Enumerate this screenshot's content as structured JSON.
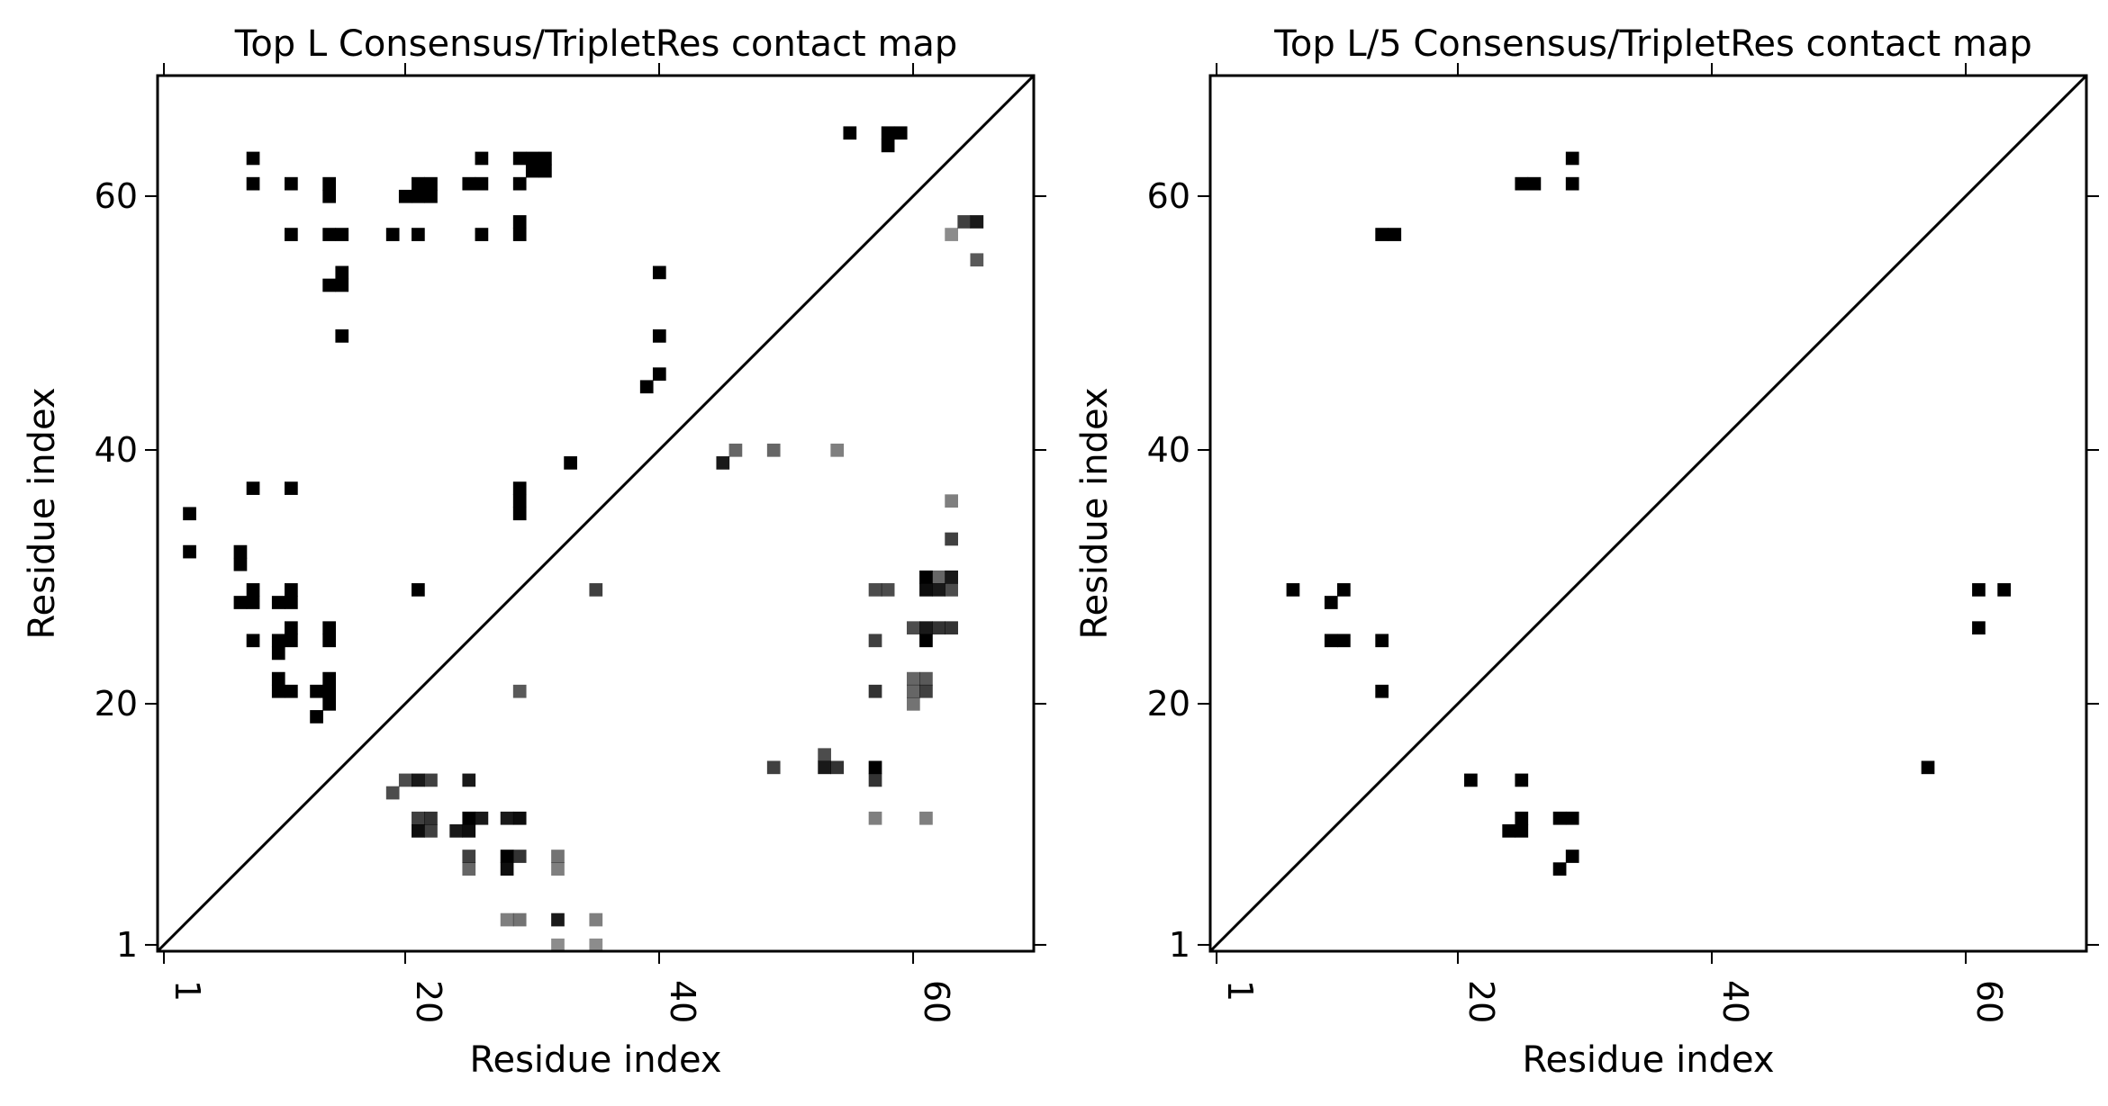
{
  "charts": [
    {
      "title": "Top L Consensus/TripletRes contact map",
      "xlabel": "Residue index",
      "ylabel": "Residue index",
      "xticks": [
        "1",
        "20",
        "40",
        "60"
      ],
      "yticks": [
        "1",
        "20",
        "40",
        "60"
      ]
    },
    {
      "title": "Top L/5 Consensus/TripletRes contact map",
      "xlabel": "Residue index",
      "ylabel": "Residue index",
      "xticks": [
        "1",
        "20",
        "40",
        "60"
      ],
      "yticks": [
        "1",
        "20",
        "40",
        "60"
      ]
    }
  ],
  "chart_data": [
    {
      "type": "heatmap",
      "title": "Top L Consensus/TripletRes contact map",
      "xlabel": "Residue index",
      "ylabel": "Residue index",
      "xlim": [
        0.5,
        69.5
      ],
      "ylim": [
        0.5,
        69.5
      ],
      "tick_values": [
        1,
        20,
        40,
        60
      ],
      "grid": false,
      "diagonal_line": true,
      "cell_color": "#000000",
      "upper_contacts": [
        [
          8,
          63
        ],
        [
          8,
          61
        ],
        [
          11,
          61
        ],
        [
          11,
          57
        ],
        [
          14,
          61
        ],
        [
          14,
          60
        ],
        [
          14,
          57
        ],
        [
          15,
          57
        ],
        [
          14,
          53
        ],
        [
          15,
          53
        ],
        [
          15,
          54
        ],
        [
          15,
          49
        ],
        [
          19,
          57
        ],
        [
          20,
          60
        ],
        [
          21,
          60
        ],
        [
          21,
          57
        ],
        [
          21,
          61
        ],
        [
          22,
          61
        ],
        [
          22,
          60
        ],
        [
          25,
          61
        ],
        [
          26,
          61
        ],
        [
          26,
          63
        ],
        [
          26,
          57
        ],
        [
          29,
          63
        ],
        [
          29,
          61
        ],
        [
          29,
          58
        ],
        [
          29,
          57
        ],
        [
          30,
          63
        ],
        [
          30,
          62
        ],
        [
          31,
          62
        ],
        [
          31,
          63
        ],
        [
          55,
          65
        ],
        [
          58,
          65
        ],
        [
          58,
          64
        ],
        [
          59,
          65
        ],
        [
          39,
          45
        ],
        [
          40,
          46
        ],
        [
          40,
          49
        ],
        [
          40,
          54
        ],
        [
          33,
          39
        ],
        [
          29,
          37
        ],
        [
          29,
          36
        ],
        [
          29,
          35
        ],
        [
          21,
          29
        ],
        [
          3,
          35
        ],
        [
          3,
          32
        ],
        [
          7,
          32
        ],
        [
          7,
          31
        ],
        [
          7,
          28
        ],
        [
          8,
          28
        ],
        [
          8,
          29
        ],
        [
          8,
          37
        ],
        [
          8,
          25
        ],
        [
          10,
          28
        ],
        [
          10,
          24
        ],
        [
          10,
          25
        ],
        [
          10,
          22
        ],
        [
          10,
          21
        ],
        [
          11,
          28
        ],
        [
          11,
          29
        ],
        [
          11,
          37
        ],
        [
          11,
          26
        ],
        [
          11,
          25
        ],
        [
          11,
          21
        ],
        [
          13,
          21
        ],
        [
          13,
          19
        ],
        [
          14,
          21
        ],
        [
          14,
          22
        ],
        [
          14,
          20
        ],
        [
          14,
          25
        ],
        [
          14,
          26
        ]
      ],
      "lower_contacts": [
        [
          45,
          39,
          0.9
        ],
        [
          46,
          40,
          0.6
        ],
        [
          49,
          40,
          0.6
        ],
        [
          54,
          40,
          0.5
        ],
        [
          35,
          29,
          0.75
        ],
        [
          29,
          21,
          0.65
        ],
        [
          49,
          15,
          0.75
        ],
        [
          53,
          16,
          0.7
        ],
        [
          53,
          15,
          0.9
        ],
        [
          54,
          15,
          0.8
        ],
        [
          57,
          15,
          1.0
        ],
        [
          57,
          14,
          0.8
        ],
        [
          57,
          11,
          0.5
        ],
        [
          61,
          11,
          0.5
        ],
        [
          57,
          29,
          0.7
        ],
        [
          58,
          29,
          0.7
        ],
        [
          57,
          25,
          0.75
        ],
        [
          57,
          21,
          0.8
        ],
        [
          60,
          26,
          0.7
        ],
        [
          60,
          22,
          0.6
        ],
        [
          60,
          21,
          0.6
        ],
        [
          60,
          20,
          0.55
        ],
        [
          61,
          22,
          0.65
        ],
        [
          61,
          21,
          0.75
        ],
        [
          61,
          30,
          1.0
        ],
        [
          61,
          29,
          0.95
        ],
        [
          61,
          26,
          0.9
        ],
        [
          61,
          25,
          1.0
        ],
        [
          62,
          30,
          0.6
        ],
        [
          62,
          29,
          0.9
        ],
        [
          62,
          26,
          0.8
        ],
        [
          63,
          30,
          0.9
        ],
        [
          63,
          29,
          0.7
        ],
        [
          63,
          26,
          0.8
        ],
        [
          63,
          33,
          0.75
        ],
        [
          63,
          36,
          0.5
        ],
        [
          63,
          57,
          0.45
        ],
        [
          64,
          58,
          0.75
        ],
        [
          65,
          58,
          0.9
        ],
        [
          65,
          55,
          0.65
        ],
        [
          19,
          13,
          0.7
        ],
        [
          20,
          14,
          0.7
        ],
        [
          21,
          14,
          0.9
        ],
        [
          21,
          11,
          0.75
        ],
        [
          21,
          10,
          0.95
        ],
        [
          22,
          14,
          0.75
        ],
        [
          22,
          11,
          0.8
        ],
        [
          22,
          10,
          0.75
        ],
        [
          24,
          10,
          0.9
        ],
        [
          25,
          10,
          0.95
        ],
        [
          25,
          11,
          1.0
        ],
        [
          25,
          14,
          0.9
        ],
        [
          26,
          11,
          0.9
        ],
        [
          25,
          8,
          0.75
        ],
        [
          25,
          7,
          0.6
        ],
        [
          28,
          11,
          0.9
        ],
        [
          28,
          8,
          1.0
        ],
        [
          28,
          7,
          0.95
        ],
        [
          28,
          3,
          0.5
        ],
        [
          29,
          11,
          0.95
        ],
        [
          29,
          8,
          0.8
        ],
        [
          29,
          3,
          0.55
        ],
        [
          32,
          8,
          0.55
        ],
        [
          32,
          7,
          0.5
        ],
        [
          32,
          3,
          0.9
        ],
        [
          32,
          1,
          0.45
        ],
        [
          35,
          3,
          0.5
        ],
        [
          35,
          1,
          0.45
        ]
      ]
    },
    {
      "type": "heatmap",
      "title": "Top L/5 Consensus/TripletRes contact map",
      "xlabel": "Residue index",
      "ylabel": "Residue index",
      "xlim": [
        0.5,
        69.5
      ],
      "ylim": [
        0.5,
        69.5
      ],
      "tick_values": [
        1,
        20,
        40,
        60
      ],
      "grid": false,
      "diagonal_line": true,
      "cell_color": "#000000",
      "upper_contacts": [
        [
          29,
          63
        ],
        [
          29,
          61
        ],
        [
          25,
          61
        ],
        [
          26,
          61
        ],
        [
          14,
          57
        ],
        [
          15,
          57
        ],
        [
          7,
          29
        ],
        [
          10,
          28
        ],
        [
          11,
          29
        ],
        [
          10,
          25
        ],
        [
          11,
          25
        ],
        [
          14,
          25
        ],
        [
          14,
          21
        ]
      ],
      "lower_contacts": [
        [
          61,
          29,
          1.0
        ],
        [
          63,
          29,
          1.0
        ],
        [
          61,
          26,
          1.0
        ],
        [
          57,
          15,
          1.0
        ],
        [
          21,
          14,
          1.0
        ],
        [
          25,
          14,
          1.0
        ],
        [
          24,
          10,
          1.0
        ],
        [
          25,
          10,
          1.0
        ],
        [
          25,
          11,
          1.0
        ],
        [
          28,
          11,
          1.0
        ],
        [
          29,
          11,
          1.0
        ],
        [
          29,
          8,
          1.0
        ],
        [
          28,
          7,
          1.0
        ]
      ]
    }
  ]
}
